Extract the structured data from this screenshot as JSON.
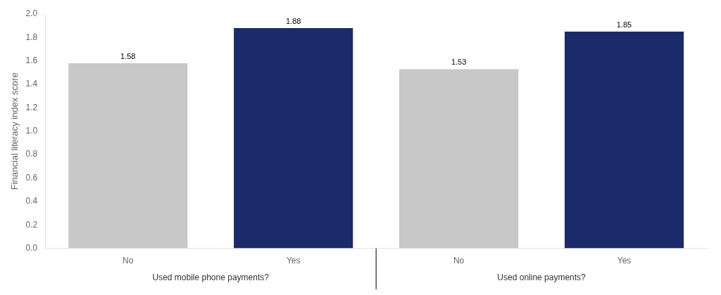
{
  "chart_data": {
    "type": "bar",
    "groups": [
      {
        "label": "Used mobile phone payments?",
        "categories": [
          "No",
          "Yes"
        ],
        "values": [
          1.58,
          1.88
        ],
        "colors": [
          "#c8c8c8",
          "#1b2a6b"
        ]
      },
      {
        "label": "Used online payments?",
        "categories": [
          "No",
          "Yes"
        ],
        "values": [
          1.53,
          1.85
        ],
        "colors": [
          "#c8c8c8",
          "#1b2a6b"
        ]
      }
    ],
    "ylabel": "Financial literacy index score",
    "ylim": [
      0.0,
      2.0
    ],
    "yticks": [
      {
        "value": 0.0,
        "label": "0.0"
      },
      0.2,
      0.4,
      0.6,
      0.8,
      {
        "value": 1.0,
        "label": "1.0"
      },
      1.2,
      1.4,
      1.6,
      1.8,
      {
        "value": 2.0,
        "label": "2.0"
      }
    ],
    "data_labels": true,
    "grid": false
  }
}
